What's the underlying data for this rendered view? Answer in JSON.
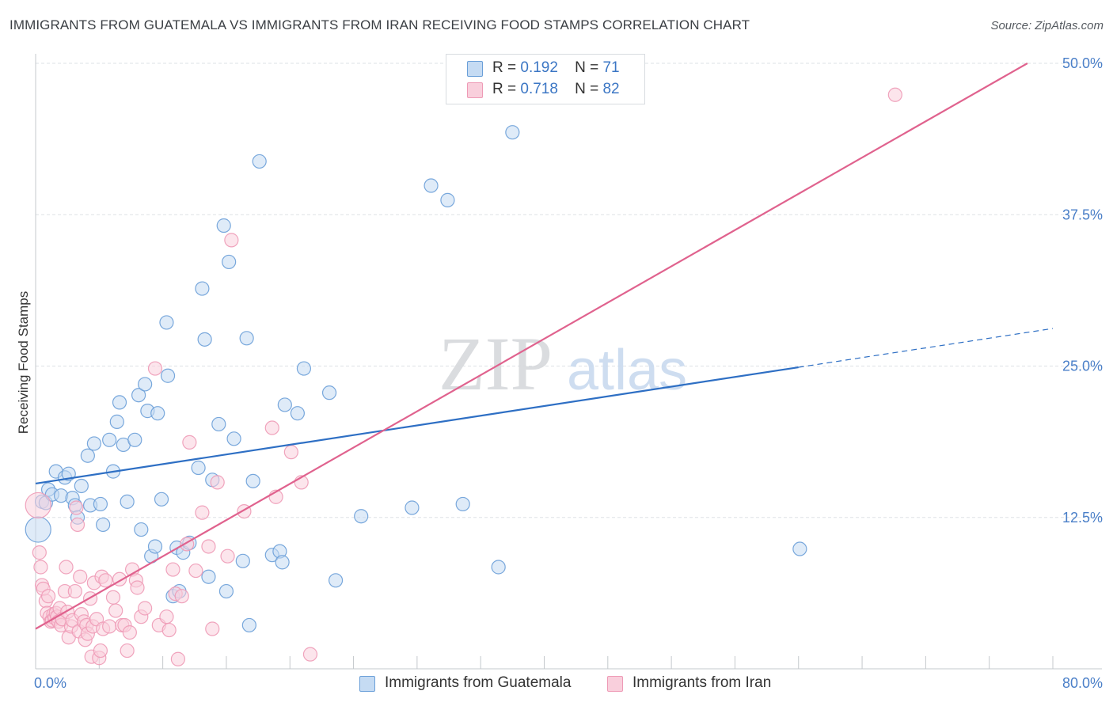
{
  "title": "IMMIGRANTS FROM GUATEMALA VS IMMIGRANTS FROM IRAN RECEIVING FOOD STAMPS CORRELATION CHART",
  "source": "Source: ZipAtlas.com",
  "watermark": {
    "zip": "ZIP",
    "atlas": "atlas"
  },
  "legend": {
    "guatemala": {
      "r_label": "R =",
      "r_value": "0.192",
      "n_label": "N =",
      "n_value": "71"
    },
    "iran": {
      "r_label": "R =",
      "r_value": "0.718",
      "n_label": "N =",
      "n_value": "82"
    }
  },
  "colors": {
    "guatemala": "#6a9fd8",
    "guatemala_line": "#2e6fc4",
    "iran": "#ee9ab6",
    "iran_line": "#e0628e",
    "grid": "#dde1e5",
    "tick_text": "#4a7fc8"
  },
  "chart_data": {
    "type": "scatter",
    "title": "IMMIGRANTS FROM GUATEMALA VS IMMIGRANTS FROM IRAN RECEIVING FOOD STAMPS CORRELATION CHART",
    "xlabel": "",
    "ylabel": "Receiving Food Stamps",
    "xlim": [
      0,
      80
    ],
    "ylim": [
      0,
      50
    ],
    "x_tick_labels": [
      "0.0%",
      "80.0%"
    ],
    "y_ticks": [
      12.5,
      25.0,
      37.5,
      50.0
    ],
    "y_tick_labels": [
      "12.5%",
      "25.0%",
      "37.5%",
      "50.0%"
    ],
    "grid": true,
    "legend_position": "top-center",
    "series": [
      {
        "name": "Immigrants from Guatemala",
        "key": "guatemala",
        "trend": {
          "x0": 0,
          "y0": 15.3,
          "x1": 60,
          "y1": 24.9,
          "dashed_to_x": 80,
          "dashed_to_y": 28.1
        },
        "points": [
          [
            0.2,
            11.5
          ],
          [
            0.5,
            13.8
          ],
          [
            0.8,
            13.7
          ],
          [
            1.0,
            14.8
          ],
          [
            1.3,
            14.4
          ],
          [
            1.6,
            16.3
          ],
          [
            2.0,
            14.3
          ],
          [
            2.3,
            15.8
          ],
          [
            2.6,
            16.1
          ],
          [
            2.9,
            14.1
          ],
          [
            3.1,
            13.5
          ],
          [
            3.3,
            12.5
          ],
          [
            3.6,
            15.1
          ],
          [
            4.1,
            17.6
          ],
          [
            4.3,
            13.5
          ],
          [
            4.6,
            18.6
          ],
          [
            5.1,
            13.6
          ],
          [
            5.3,
            11.9
          ],
          [
            5.8,
            18.9
          ],
          [
            6.1,
            16.3
          ],
          [
            6.4,
            20.4
          ],
          [
            6.6,
            22.0
          ],
          [
            6.9,
            18.5
          ],
          [
            7.2,
            13.8
          ],
          [
            7.8,
            18.9
          ],
          [
            8.1,
            22.6
          ],
          [
            8.3,
            11.5
          ],
          [
            8.6,
            23.5
          ],
          [
            8.8,
            21.3
          ],
          [
            9.1,
            9.3
          ],
          [
            9.4,
            10.1
          ],
          [
            9.6,
            21.1
          ],
          [
            9.9,
            14.0
          ],
          [
            10.3,
            28.6
          ],
          [
            10.4,
            24.2
          ],
          [
            10.8,
            6.0
          ],
          [
            11.1,
            10.0
          ],
          [
            11.3,
            6.4
          ],
          [
            11.6,
            9.6
          ],
          [
            12.1,
            10.4
          ],
          [
            12.8,
            16.6
          ],
          [
            13.1,
            31.4
          ],
          [
            13.3,
            27.2
          ],
          [
            13.6,
            7.6
          ],
          [
            13.9,
            15.6
          ],
          [
            14.4,
            20.2
          ],
          [
            14.8,
            36.6
          ],
          [
            15.0,
            6.4
          ],
          [
            15.2,
            33.6
          ],
          [
            15.6,
            19.0
          ],
          [
            16.3,
            8.9
          ],
          [
            16.6,
            27.3
          ],
          [
            16.8,
            3.6
          ],
          [
            17.1,
            15.5
          ],
          [
            17.6,
            41.9
          ],
          [
            18.6,
            9.4
          ],
          [
            19.2,
            9.7
          ],
          [
            19.4,
            8.8
          ],
          [
            19.6,
            21.8
          ],
          [
            20.6,
            21.1
          ],
          [
            21.1,
            24.8
          ],
          [
            23.1,
            22.8
          ],
          [
            23.6,
            7.3
          ],
          [
            25.6,
            12.6
          ],
          [
            29.6,
            13.3
          ],
          [
            31.1,
            39.9
          ],
          [
            32.4,
            38.7
          ],
          [
            33.6,
            13.6
          ],
          [
            36.4,
            8.4
          ],
          [
            37.5,
            44.3
          ],
          [
            60.1,
            9.9
          ]
        ]
      },
      {
        "name": "Immigrants from Iran",
        "key": "iran",
        "trend": {
          "x0": 0,
          "y0": 3.3,
          "x1": 78,
          "y1": 50.0
        },
        "points": [
          [
            0.2,
            13.5
          ],
          [
            0.3,
            9.6
          ],
          [
            0.4,
            8.4
          ],
          [
            0.5,
            6.9
          ],
          [
            0.6,
            6.6
          ],
          [
            0.8,
            5.6
          ],
          [
            0.9,
            4.6
          ],
          [
            1.0,
            6.0
          ],
          [
            1.1,
            4.3
          ],
          [
            1.2,
            3.9
          ],
          [
            1.3,
            4.0
          ],
          [
            1.4,
            4.5
          ],
          [
            1.5,
            4.2
          ],
          [
            1.6,
            4.6
          ],
          [
            1.7,
            4.3
          ],
          [
            1.8,
            3.9
          ],
          [
            1.9,
            5.0
          ],
          [
            2.0,
            3.6
          ],
          [
            2.1,
            4.1
          ],
          [
            2.3,
            6.4
          ],
          [
            2.4,
            8.4
          ],
          [
            2.5,
            4.7
          ],
          [
            2.6,
            2.6
          ],
          [
            2.8,
            3.5
          ],
          [
            2.9,
            4.0
          ],
          [
            3.1,
            6.4
          ],
          [
            3.2,
            13.3
          ],
          [
            3.3,
            11.9
          ],
          [
            3.4,
            3.1
          ],
          [
            3.5,
            7.6
          ],
          [
            3.6,
            4.5
          ],
          [
            3.8,
            3.9
          ],
          [
            3.9,
            2.4
          ],
          [
            4.0,
            3.6
          ],
          [
            4.1,
            2.9
          ],
          [
            4.3,
            5.8
          ],
          [
            4.4,
            1.0
          ],
          [
            4.5,
            3.5
          ],
          [
            4.6,
            7.1
          ],
          [
            4.8,
            4.1
          ],
          [
            5.0,
            0.9
          ],
          [
            5.1,
            1.5
          ],
          [
            5.2,
            7.6
          ],
          [
            5.3,
            3.3
          ],
          [
            5.5,
            7.3
          ],
          [
            5.8,
            3.5
          ],
          [
            6.1,
            5.9
          ],
          [
            6.3,
            4.8
          ],
          [
            6.6,
            7.4
          ],
          [
            6.8,
            3.6
          ],
          [
            7.0,
            3.6
          ],
          [
            7.2,
            1.5
          ],
          [
            7.4,
            3.0
          ],
          [
            7.6,
            8.2
          ],
          [
            7.9,
            7.3
          ],
          [
            8.0,
            6.7
          ],
          [
            8.3,
            4.3
          ],
          [
            8.6,
            5.0
          ],
          [
            9.4,
            24.8
          ],
          [
            9.7,
            3.6
          ],
          [
            10.3,
            4.3
          ],
          [
            10.5,
            3.2
          ],
          [
            10.8,
            8.2
          ],
          [
            11.0,
            6.2
          ],
          [
            11.2,
            0.8
          ],
          [
            11.5,
            6.0
          ],
          [
            11.9,
            10.3
          ],
          [
            12.1,
            18.7
          ],
          [
            12.6,
            8.1
          ],
          [
            13.1,
            12.9
          ],
          [
            13.6,
            10.1
          ],
          [
            13.9,
            3.3
          ],
          [
            14.3,
            15.4
          ],
          [
            15.1,
            9.3
          ],
          [
            15.4,
            35.4
          ],
          [
            16.4,
            13.0
          ],
          [
            18.6,
            19.9
          ],
          [
            18.9,
            14.2
          ],
          [
            20.1,
            17.9
          ],
          [
            20.9,
            15.4
          ],
          [
            21.6,
            1.2
          ],
          [
            67.6,
            47.4
          ]
        ]
      }
    ]
  },
  "bottom_legend": {
    "guatemala": "Immigrants from Guatemala",
    "iran": "Immigrants from Iran"
  }
}
